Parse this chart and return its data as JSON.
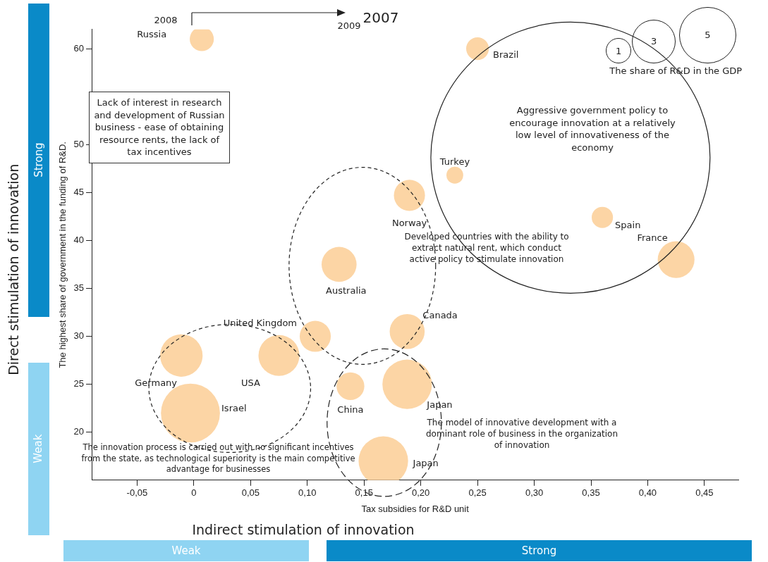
{
  "chart_data": {
    "type": "bubble",
    "xlabel": "Tax subsidies for R&D unit",
    "ylabel": "The highest share of government in the funding of R&D.",
    "legend_title": "The share of R&D in the GDP",
    "size_legend": [
      1,
      3,
      5
    ],
    "xlim": [
      -0.09,
      0.48
    ],
    "xticks": [
      {
        "value": -0.05,
        "label": "-0,05"
      },
      0,
      {
        "value": 0.05,
        "label": "0,05"
      },
      {
        "value": 0.1,
        "label": "0,10"
      },
      {
        "value": 0.15,
        "label": "0,15"
      },
      {
        "value": 0.2,
        "label": "0,20"
      },
      {
        "value": 0.25,
        "label": "0,25"
      },
      {
        "value": 0.3,
        "label": "0,30"
      },
      {
        "value": 0.35,
        "label": "0,35"
      },
      {
        "value": 0.4,
        "label": "0,40"
      },
      {
        "value": 0.45,
        "label": "0,45"
      }
    ],
    "ylim": [
      15,
      62
    ],
    "yticks": [
      20,
      25,
      30,
      35,
      40,
      45,
      50,
      60
    ],
    "legend": false,
    "series": [
      {
        "name": "Russia",
        "color": "#fcd5a5",
        "x": [
          0.007
        ],
        "values": [
          61
        ],
        "sizes": [
          0.9
        ]
      },
      {
        "name": "Brazil",
        "color": "#fcd5a5",
        "x": [
          0.25
        ],
        "values": [
          60
        ],
        "sizes": [
          0.8
        ]
      },
      {
        "name": "Turkey",
        "color": "#fcd5a5",
        "x": [
          0.23
        ],
        "values": [
          46.8
        ],
        "sizes": [
          0.44
        ]
      },
      {
        "name": "Norway",
        "color": "#fcd5a5",
        "x": [
          0.19
        ],
        "values": [
          44.7
        ],
        "sizes": [
          1.5
        ]
      },
      {
        "name": "Spain",
        "color": "#fcd5a5",
        "x": [
          0.36
        ],
        "values": [
          42.4
        ],
        "sizes": [
          0.7
        ]
      },
      {
        "name": "France",
        "color": "#fcd5a5",
        "x": [
          0.425
        ],
        "values": [
          38
        ],
        "sizes": [
          2.1
        ]
      },
      {
        "name": "Australia",
        "color": "#fcd5a5",
        "x": [
          0.128
        ],
        "values": [
          37.5
        ],
        "sizes": [
          1.9
        ]
      },
      {
        "name": "United Kingdom",
        "color": "#fcd5a5",
        "x": [
          0.107
        ],
        "values": [
          30
        ],
        "sizes": [
          1.5
        ]
      },
      {
        "name": "Canada",
        "color": "#fcd5a5",
        "x": [
          0.188
        ],
        "values": [
          30.5
        ],
        "sizes": [
          1.9
        ]
      },
      {
        "name": "Germany",
        "color": "#fcd5a5",
        "x": [
          -0.011
        ],
        "values": [
          28
        ],
        "sizes": [
          2.8
        ]
      },
      {
        "name": "USA",
        "color": "#fcd5a5",
        "x": [
          0.075
        ],
        "values": [
          28
        ],
        "sizes": [
          2.6
        ]
      },
      {
        "name": "China",
        "color": "#fcd5a5",
        "x": [
          0.138
        ],
        "values": [
          24.8
        ],
        "sizes": [
          1.2
        ]
      },
      {
        "name": "Japan",
        "color": "#fcd5a5",
        "x": [
          0.188
        ],
        "values": [
          25
        ],
        "sizes": [
          3.8
        ]
      },
      {
        "name": "Israel",
        "color": "#fcd5a5",
        "x": [
          -0.003
        ],
        "values": [
          22
        ],
        "sizes": [
          5.4
        ]
      },
      {
        "name": "Japan",
        "color": "#fcd5a5",
        "x": [
          0.167
        ],
        "values": [
          17
        ],
        "sizes": [
          3.8
        ]
      }
    ],
    "annotations": [
      "2007",
      "2008",
      "2009",
      "Lack of interest in research and development of Russian business - ease of obtaining resource rents, the lack of tax incentives",
      "Aggressive government policy to encourage innovation at a relatively low level of innovativeness of the economy",
      "Developed countries with the ability to extract natural rent, which conduct active policy to stimulate innovation",
      "The model of innovative development with a dominant role of business in the organization of innovation",
      "The innovation process is carried out with no significant incentives from the state, as technological superiority is the main competitive advantage for businesses",
      "Direct stimulation of innovation",
      "Indirect stimulation of innovation",
      "Strong",
      "Weak",
      "Weak",
      "Strong"
    ]
  }
}
